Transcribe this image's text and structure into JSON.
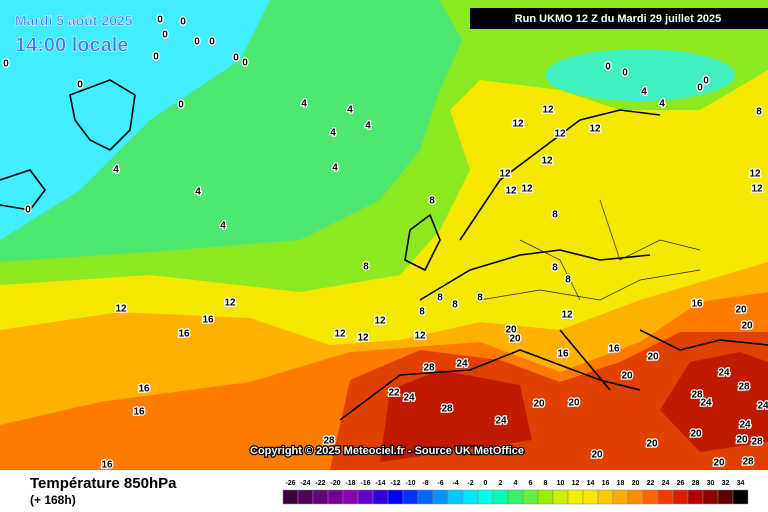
{
  "header": {
    "date": "Mardi 5 août 2025",
    "time": "14:00 locale",
    "run": "Run UKMO 12 Z du Mardi 29 juillet 2025"
  },
  "copyright": "Copyright © 2025 Meteociel.fr - Source UK MetOffice",
  "footer": {
    "title": "Température 850hPa",
    "lead": "(+ 168h)"
  },
  "colorbar": {
    "ticks": [
      -26,
      -24,
      -22,
      -20,
      -18,
      -16,
      -14,
      -12,
      -10,
      -8,
      -6,
      -4,
      -2,
      0,
      2,
      4,
      6,
      8,
      10,
      12,
      14,
      16,
      18,
      20,
      22,
      24,
      26,
      28,
      30,
      32,
      34
    ],
    "colors": [
      "#3c003c",
      "#50005a",
      "#640078",
      "#780096",
      "#8c00b4",
      "#6400c8",
      "#3200dc",
      "#0000f0",
      "#0032ff",
      "#0064ff",
      "#0096ff",
      "#00c8ff",
      "#00e6ff",
      "#00ffe6",
      "#00ffb4",
      "#3cf064",
      "#64f03c",
      "#96f000",
      "#c8f000",
      "#f0f000",
      "#ffe600",
      "#ffc800",
      "#ffaa00",
      "#ff8c00",
      "#ff6400",
      "#f03c00",
      "#dc1e00",
      "#b40000",
      "#8c0000",
      "#5a0000",
      "#000000"
    ]
  },
  "contour_labels": [
    0,
    0,
    0,
    0,
    0,
    0,
    0,
    0,
    0,
    0,
    0,
    0,
    0,
    0,
    0,
    0,
    4,
    4,
    4,
    4,
    4,
    4,
    4,
    4,
    4,
    4,
    8,
    8,
    8,
    8,
    8,
    8,
    8,
    8,
    8,
    8,
    12,
    12,
    12,
    12,
    12,
    12,
    12,
    12,
    12,
    12,
    12,
    12,
    12,
    12,
    12,
    12,
    12,
    16,
    16,
    16,
    16,
    16,
    16,
    16,
    16,
    20,
    20,
    20,
    20,
    20,
    20,
    20,
    20,
    20,
    20,
    20,
    20,
    20,
    24,
    24,
    24,
    24,
    24,
    24,
    24,
    28,
    28,
    28,
    28,
    28,
    28,
    28,
    22
  ]
}
